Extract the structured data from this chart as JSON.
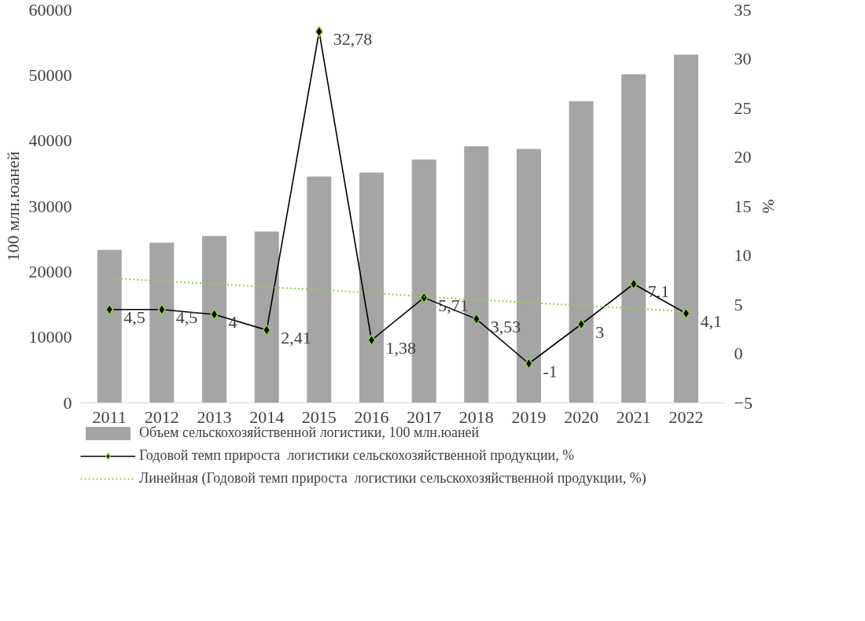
{
  "chart_data": {
    "type": "bar",
    "categories": [
      "2011",
      "2012",
      "2013",
      "2014",
      "2015",
      "2016",
      "2017",
      "2018",
      "2019",
      "2020",
      "2021",
      "2022"
    ],
    "ylabel": "100 млн.юаней",
    "y2label": "%",
    "ylim": [
      0,
      60000
    ],
    "yticks": [
      0,
      10000,
      20000,
      30000,
      40000,
      50000,
      60000
    ],
    "y2lim": [
      -5,
      35
    ],
    "y2ticks": [
      -5,
      0,
      5,
      10,
      15,
      20,
      25,
      30,
      35
    ],
    "grid": false,
    "legend": "bottom",
    "series": [
      {
        "name": "Объем сельскохозяйственной логистики, 100 млн.юаней",
        "color": "#a5a5a5",
        "values": [
          23300,
          24400,
          25400,
          26100,
          34500,
          35100,
          37100,
          39100,
          38700,
          46000,
          50100,
          53100
        ]
      },
      {
        "name": "Годовой темп прироста  логистики сельскохозяйственной продукции, %",
        "type": "line",
        "axis": "y2",
        "color": "#000000",
        "marker": "diamond",
        "line_style": "solid",
        "values": [
          4.5,
          4.5,
          4,
          2.41,
          32.78,
          1.38,
          5.71,
          3.53,
          -1,
          3,
          7.1,
          4.1
        ],
        "value_labels": [
          "4,5",
          "4,5",
          "4",
          "2,41",
          "32,78",
          "1,38",
          "5,71",
          "3,53",
          "-1",
          "3",
          "7,1",
          "4,1"
        ]
      },
      {
        "name": "Линейная (Годовой темп прироста  логистики сельскохозяйственной продукции, %)",
        "type": "line",
        "axis": "y2",
        "color": "#92d050",
        "marker": "none",
        "line_style": "dotted",
        "values": [
          7.7,
          7.4,
          7.1,
          6.8,
          6.5,
          6.2,
          5.8,
          5.5,
          5.2,
          4.9,
          4.6,
          4.3
        ]
      }
    ]
  }
}
